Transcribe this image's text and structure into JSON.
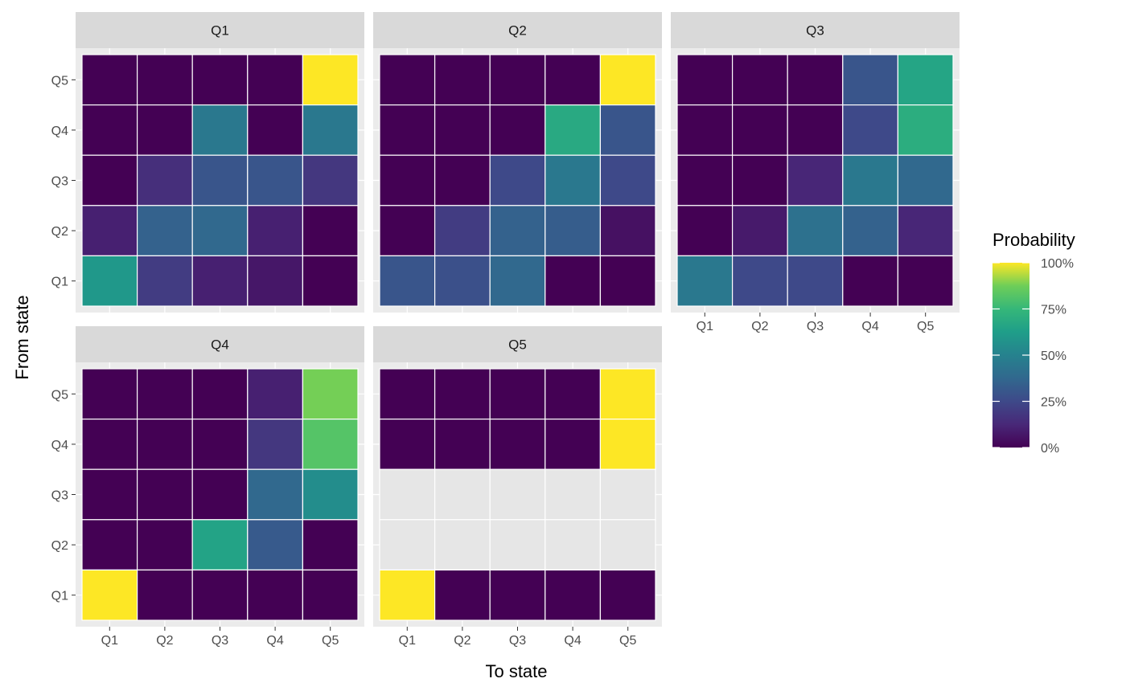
{
  "chart_data": {
    "type": "heatmap",
    "facet_var": "Quintile",
    "facets": [
      "Q1",
      "Q2",
      "Q3",
      "Q4",
      "Q5"
    ],
    "x_categories": [
      "Q1",
      "Q2",
      "Q3",
      "Q4",
      "Q5"
    ],
    "y_categories": [
      "Q1",
      "Q2",
      "Q3",
      "Q4",
      "Q5"
    ],
    "xlabel": "To state",
    "ylabel": "From state",
    "legend": {
      "title": "Probability",
      "position": "right",
      "breaks": [
        "0%",
        "25%",
        "50%",
        "75%",
        "100%"
      ],
      "break_values": [
        0,
        0.25,
        0.5,
        0.75,
        1.0
      ],
      "limits": [
        0,
        1.0
      ]
    },
    "na_color": "#e6e6e6",
    "panels": [
      {
        "facet": "Q1",
        "matrix": {
          "Q5": [
            0,
            0,
            0,
            0,
            1.0
          ],
          "Q4": [
            0,
            0,
            0.45,
            0,
            0.45
          ],
          "Q3": [
            0,
            0.15,
            0.3,
            0.3,
            0.18
          ],
          "Q2": [
            0.1,
            0.35,
            0.38,
            0.1,
            0
          ],
          "Q1": [
            0.6,
            0.2,
            0.1,
            0.07,
            0
          ]
        }
      },
      {
        "facet": "Q2",
        "matrix": {
          "Q5": [
            0,
            0,
            0,
            0,
            1.0
          ],
          "Q4": [
            0,
            0,
            0,
            0.68,
            0.3
          ],
          "Q3": [
            0,
            0,
            0.25,
            0.45,
            0.25
          ],
          "Q2": [
            0,
            0.2,
            0.35,
            0.33,
            0.05
          ],
          "Q1": [
            0.3,
            0.28,
            0.38,
            0,
            0
          ]
        }
      },
      {
        "facet": "Q3",
        "matrix": {
          "Q5": [
            0,
            0,
            0,
            0.3,
            0.66
          ],
          "Q4": [
            0,
            0,
            0,
            0.25,
            0.7
          ],
          "Q3": [
            0,
            0,
            0.12,
            0.45,
            0.38
          ],
          "Q2": [
            0,
            0.08,
            0.42,
            0.35,
            0.12
          ],
          "Q1": [
            0.45,
            0.25,
            0.25,
            0,
            0
          ]
        }
      },
      {
        "facet": "Q4",
        "matrix": {
          "Q5": [
            0,
            0,
            0,
            0.1,
            0.88
          ],
          "Q4": [
            0,
            0,
            0,
            0.18,
            0.82
          ],
          "Q3": [
            0,
            0,
            0,
            0.38,
            0.55
          ],
          "Q2": [
            0,
            0,
            0.65,
            0.32,
            0
          ],
          "Q1": [
            1.0,
            0,
            0,
            0,
            0
          ]
        }
      },
      {
        "facet": "Q5",
        "matrix": {
          "Q5": [
            0,
            0,
            0,
            0,
            1.0
          ],
          "Q4": [
            0,
            0,
            0,
            0,
            1.0
          ],
          "Q3": [
            null,
            null,
            null,
            null,
            null
          ],
          "Q2": [
            null,
            null,
            null,
            null,
            null
          ],
          "Q1": [
            1.0,
            0,
            0,
            0,
            0
          ]
        }
      }
    ]
  }
}
